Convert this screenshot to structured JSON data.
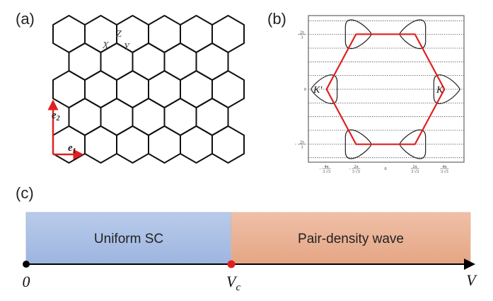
{
  "panels": {
    "a": {
      "label": "(a)",
      "bond_labels": {
        "x": "X",
        "y": "Y",
        "z": "Z"
      },
      "vectors": {
        "e1": "e",
        "e1_sub": "1",
        "e2": "e",
        "e2_sub": "2"
      },
      "lattice_rows": [
        6,
        5,
        6,
        5,
        6
      ],
      "vector_color": "#e02020"
    },
    "b": {
      "label": "(b)",
      "points": {
        "K": "K",
        "Kp": "K′"
      },
      "x_ticks": [
        {
          "sign": "-",
          "num": "4π",
          "den": "3 √3"
        },
        {
          "sign": "-",
          "num": "2π",
          "den": "3 √3"
        },
        {
          "sign": "",
          "num": "0",
          "den": ""
        },
        {
          "sign": "",
          "num": "2π",
          "den": "3 √3"
        },
        {
          "sign": "",
          "num": "4π",
          "den": "3 √3"
        }
      ],
      "y_ticks": [
        {
          "sign": "",
          "num": "2π",
          "den": "3"
        },
        {
          "sign": "",
          "num": "0",
          "den": ""
        },
        {
          "sign": "-",
          "num": "2π",
          "den": "3"
        }
      ],
      "zone_color": "#e02020"
    },
    "c": {
      "label": "(c)",
      "phases": [
        {
          "name": "Uniform SC",
          "color": "#a9bfe4"
        },
        {
          "name": "Pair-density wave",
          "color": "#e9b196"
        }
      ],
      "axis": {
        "origin": "0",
        "critical": "V",
        "critical_sub": "c",
        "variable": "V"
      },
      "critical_color": "#e02020"
    }
  }
}
